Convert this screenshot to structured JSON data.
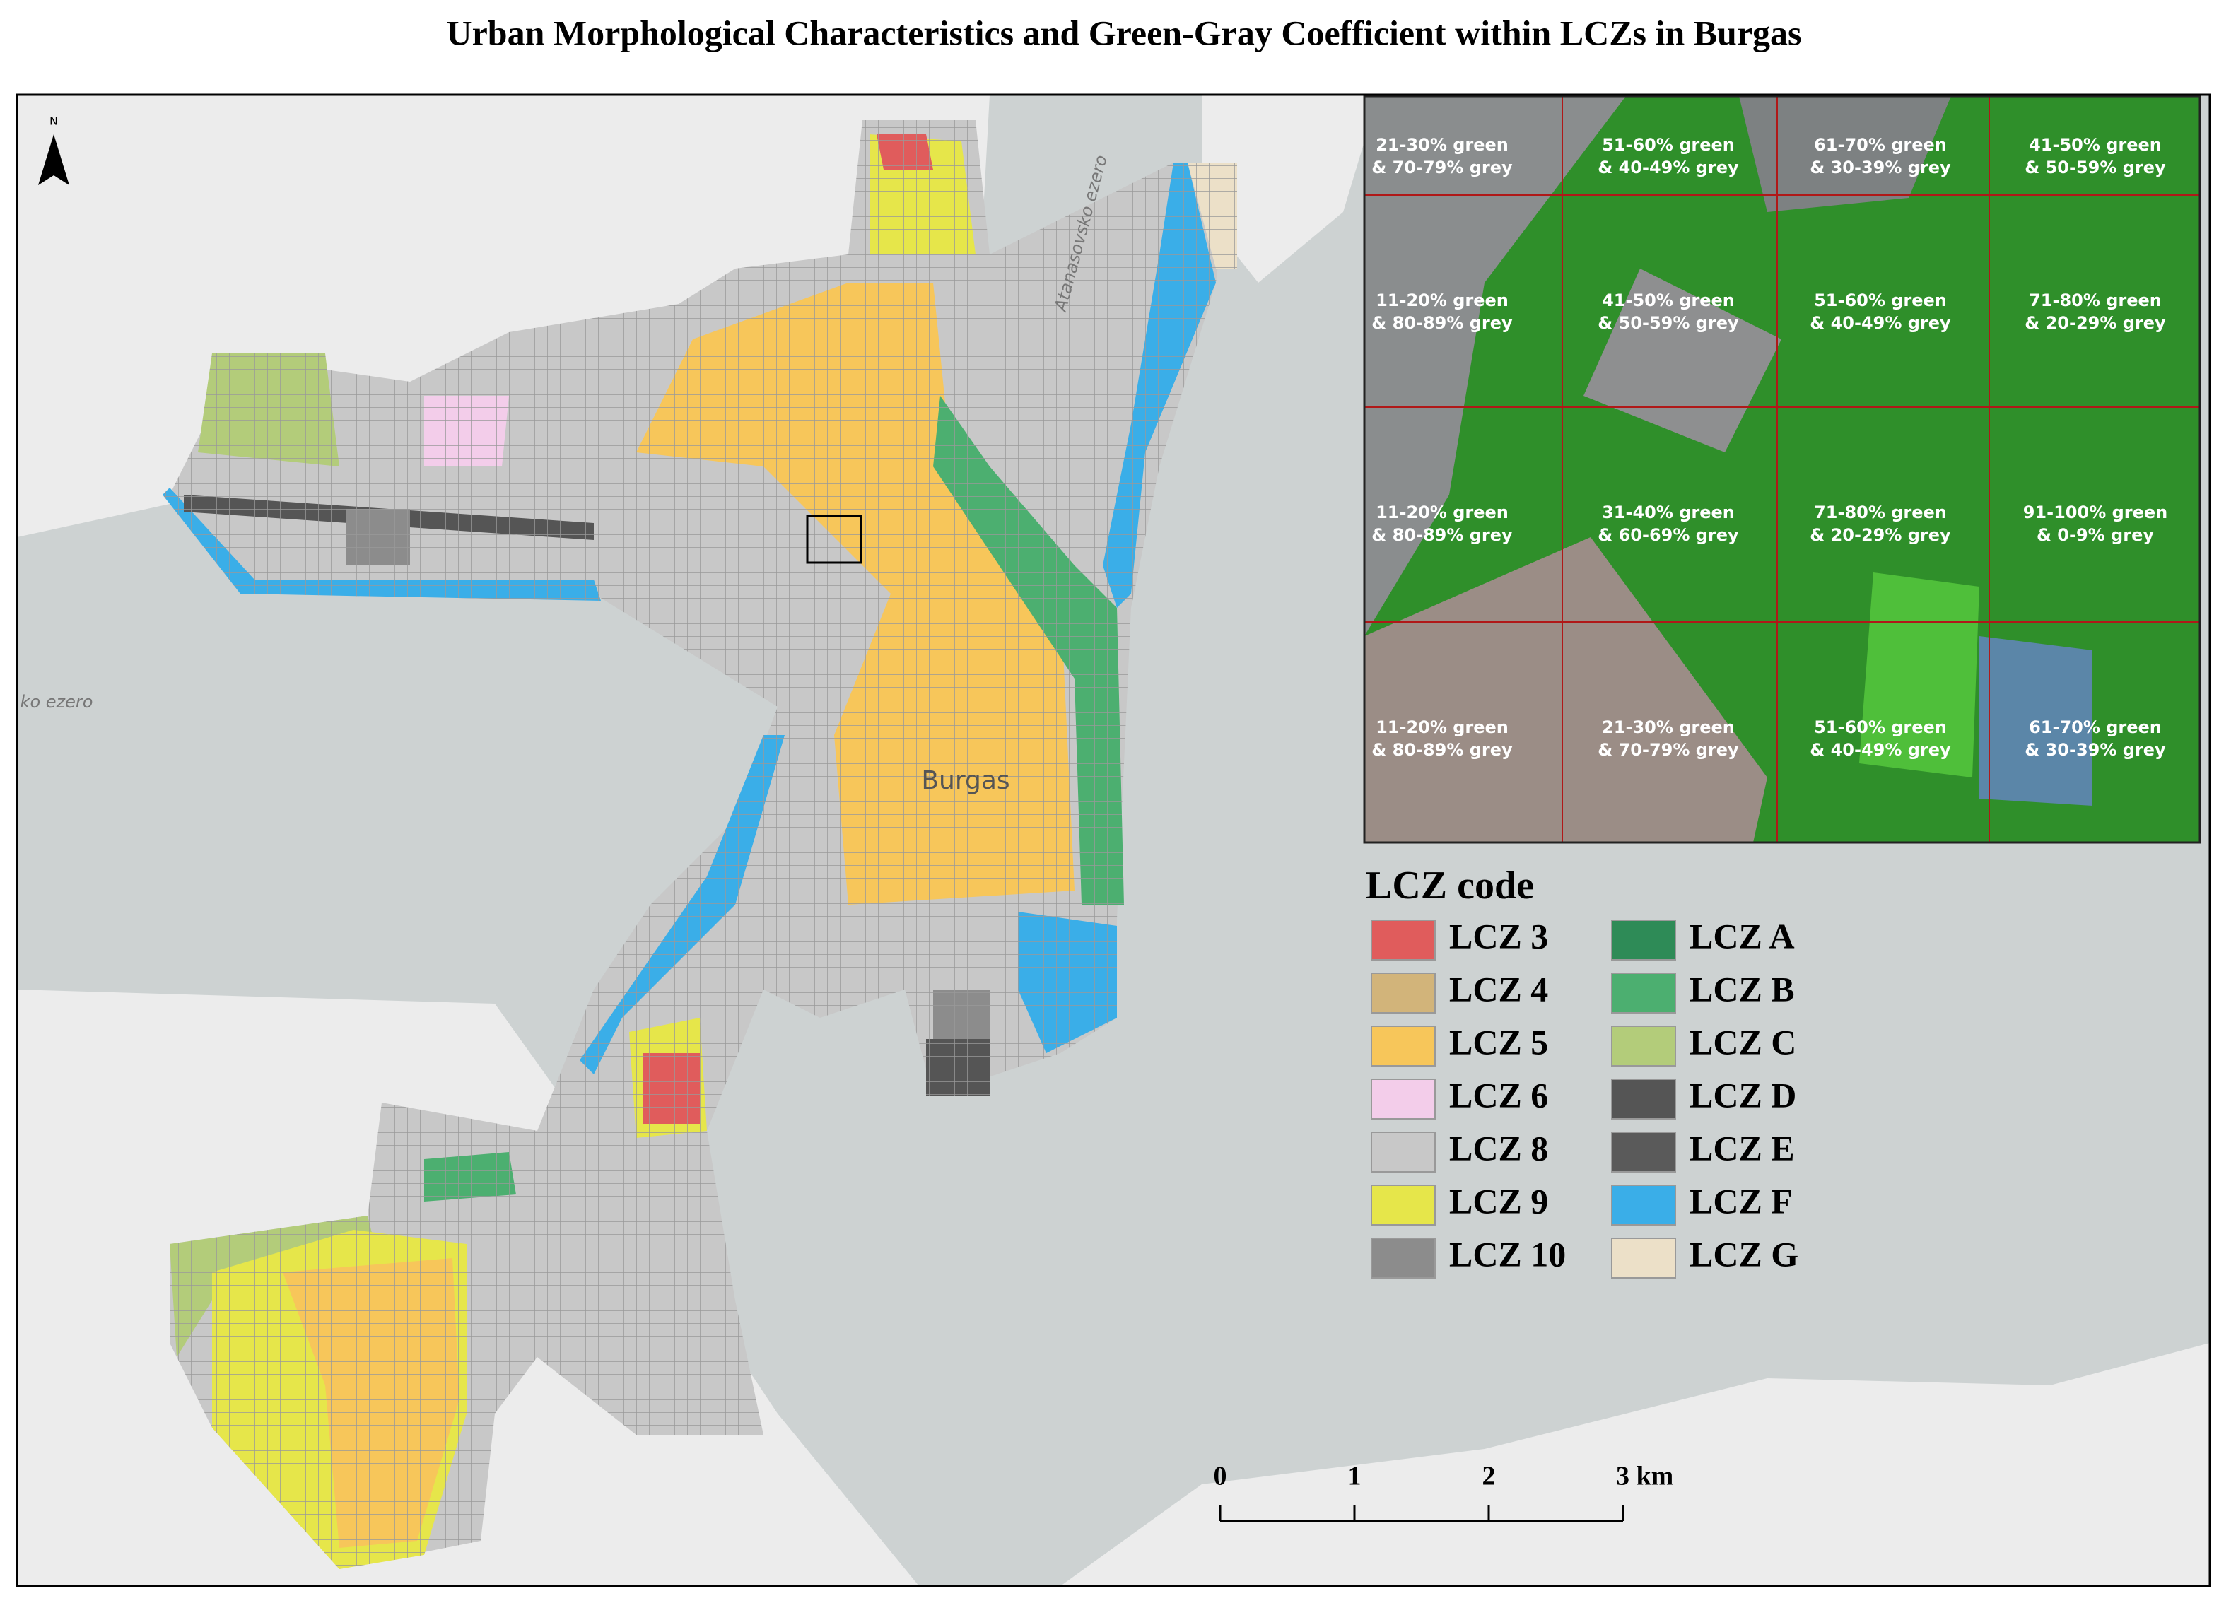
{
  "title": "Urban Morphological Characteristics and Green-Gray Coefficient within LCZs in Burgas",
  "north": "N",
  "place_labels": {
    "city": "Burgas",
    "lake_north": "Atanasovsko ezero",
    "lake_west": "ko ezero"
  },
  "inset_cells": [
    [
      "21-30% green",
      "& 70-79% grey"
    ],
    [
      "51-60% green",
      "& 40-49% grey"
    ],
    [
      "61-70% green",
      "& 30-39% grey"
    ],
    [
      "41-50% green",
      "& 50-59% grey"
    ],
    [
      "11-20% green",
      "& 80-89% grey"
    ],
    [
      "41-50% green",
      "& 50-59% grey"
    ],
    [
      "51-60% green",
      "& 40-49% grey"
    ],
    [
      "71-80% green",
      "& 20-29% grey"
    ],
    [
      "11-20% green",
      "& 80-89% grey"
    ],
    [
      "31-40% green",
      "& 60-69% grey"
    ],
    [
      "71-80% green",
      "& 20-29% grey"
    ],
    [
      "91-100% green",
      "& 0-9% grey"
    ],
    [
      "11-20% green",
      "& 80-89% grey"
    ],
    [
      "21-30% green",
      "& 70-79% grey"
    ],
    [
      "51-60% green",
      "& 40-49% grey"
    ],
    [
      "61-70% green",
      "& 30-39% grey"
    ]
  ],
  "legend": {
    "title": "LCZ code",
    "items": [
      {
        "name": "LCZ 3",
        "color": "#e05c5c"
      },
      {
        "name": "LCZ 4",
        "color": "#d2b47a"
      },
      {
        "name": "LCZ 5",
        "color": "#f7c65a"
      },
      {
        "name": "LCZ 6",
        "color": "#f3cdea"
      },
      {
        "name": "LCZ 8",
        "color": "#c8c8c8"
      },
      {
        "name": "LCZ 9",
        "color": "#e6e64a"
      },
      {
        "name": "LCZ 10",
        "color": "#8c8c8c"
      },
      {
        "name": "LCZ A",
        "color": "#2e8b57"
      },
      {
        "name": "LCZ B",
        "color": "#4caf70"
      },
      {
        "name": "LCZ C",
        "color": "#b3cc7a"
      },
      {
        "name": "LCZ D",
        "color": "#555555"
      },
      {
        "name": "LCZ E",
        "color": "#5a5a5a"
      },
      {
        "name": "LCZ F",
        "color": "#3aaee8"
      },
      {
        "name": "LCZ G",
        "color": "#ece0c8"
      }
    ]
  },
  "scale_bar": [
    "0",
    "1",
    "2",
    "3 km"
  ]
}
